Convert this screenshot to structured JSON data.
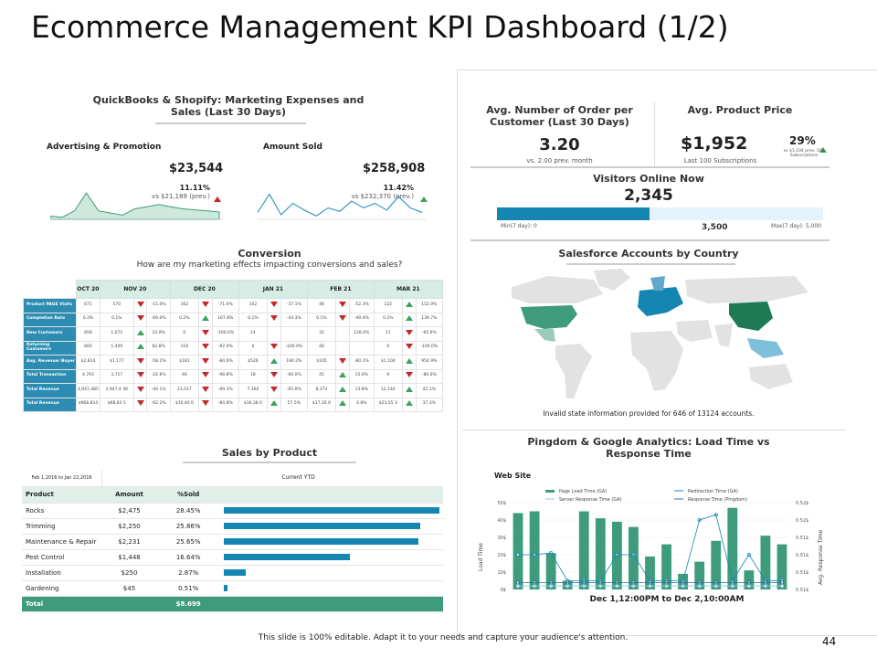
{
  "title": "Ecommerce Management KPI Dashboard (1/2)",
  "footer": {
    "note": "This slide is 100% editable. Adapt it to your needs and capture your audience's attention.",
    "page": "44"
  },
  "colors": {
    "teal": "#3e9c7c",
    "blue": "#1585b2",
    "red": "#c62828",
    "green": "#3aa35c"
  },
  "qb": {
    "title": "QuickBooks & Shopify: Marketing Expenses and Sales (Last 30 Days)",
    "adv": {
      "label": "Advertising & Promotion",
      "value": "$23,544",
      "pct": "11.11%",
      "vs": "vs $21,189 (prev.)"
    },
    "sold": {
      "label": "Amount Sold",
      "value": "$258,908",
      "pct": "11.42%",
      "vs": "vs $232,370 (prev.)"
    }
  },
  "conversion": {
    "title": "Conversion",
    "subtitle": "How are my marketing effects impacting conversions and sales?",
    "headers": [
      "OCT 20",
      "NOV 20",
      "DEC 20",
      "JAN 21",
      "FEB 21",
      "MAR 21"
    ],
    "rows": [
      {
        "name": "Product PAGE Visits",
        "oct": "671",
        "cells": [
          [
            "570",
            "d",
            "-15.0%"
          ],
          [
            "162",
            "d",
            "-71.6%"
          ],
          [
            "102",
            "d",
            "-37.1%"
          ],
          [
            "48",
            "d",
            "-52.3%"
          ],
          [
            "122",
            "u",
            "152.0%"
          ]
        ]
      },
      {
        "name": "Completion Rate",
        "oct": "0.3%",
        "cells": [
          [
            "0.1%",
            "d",
            "-69.0%"
          ],
          [
            "0.2%",
            "u",
            "167.8%"
          ],
          [
            "0.1%",
            "d",
            "-43.3%"
          ],
          [
            "0.1%",
            "d",
            "-49.4%"
          ],
          [
            "0.2%",
            "u",
            "139.7%"
          ]
        ]
      },
      {
        "name": "New Customers",
        "oct": "858",
        "cells": [
          [
            "1,072",
            "u",
            "24.9%"
          ],
          [
            "0",
            "d",
            "-100.0%"
          ],
          [
            "14",
            "",
            ""
          ],
          [
            "32",
            "",
            "128.6%"
          ],
          [
            "11",
            "d",
            "-65.6%"
          ]
        ]
      },
      {
        "name": "Returning Customers",
        "oct": "800",
        "cells": [
          [
            "1,449",
            "u",
            "82.8%"
          ],
          [
            "116",
            "d",
            "-92.0%"
          ],
          [
            "0",
            "d",
            "-100.0%"
          ],
          [
            "48",
            "",
            ""
          ],
          [
            "0",
            "d",
            "-100.0%"
          ]
        ]
      },
      {
        "name": "Avg. Revenue/ Buyer",
        "oct": "$2,814",
        "cells": [
          [
            "$1,177",
            "d",
            "-58.2%"
          ],
          [
            "$181",
            "d",
            "-84.6%"
          ],
          [
            "$526",
            "u",
            "190.2%"
          ],
          [
            "$105",
            "d",
            "-80.1%"
          ],
          [
            "$1,104",
            "u",
            "954.9%"
          ]
        ]
      },
      {
        "name": "Total Transaction",
        "oct": "4,793",
        "cells": [
          [
            "3,717",
            "d",
            "-22.6%"
          ],
          [
            "46",
            "d",
            "-98.8%"
          ],
          [
            "18",
            "d",
            "-60.0%"
          ],
          [
            "45",
            "u",
            "15.0%"
          ],
          [
            "9",
            "d",
            "-80.0%"
          ]
        ]
      },
      {
        "name": "Total Revenue",
        "oct": "4,947,485",
        "cells": [
          [
            "2,947,4 46",
            "d",
            "-40.1%"
          ],
          [
            "21,017",
            "d",
            "-99.3%"
          ],
          [
            "7,360",
            "d",
            "-65.0%"
          ],
          [
            "8,372",
            "u",
            "13.8%"
          ],
          [
            "12,144",
            "u",
            "45.1%"
          ]
        ]
      },
      {
        "name": "Total Revenue",
        "oct": "$968,814",
        "cells": [
          [
            "$68,83 5",
            "d",
            "-92.2%"
          ],
          [
            "$10,40 0",
            "d",
            "-84.8%"
          ],
          [
            "$16,38 0",
            "u",
            "57.5%"
          ],
          [
            "$17,16 0",
            "u",
            "4.8%"
          ],
          [
            "$23,55 3",
            "u",
            "37.3%"
          ]
        ]
      }
    ]
  },
  "sales": {
    "title": "Sales by Product",
    "period": "Feb 1,2016 to Jan 22,2016",
    "ytd": "Current YTD",
    "cols": [
      "Product",
      "Amount",
      "%Sold"
    ],
    "items": [
      {
        "product": "Rocks",
        "amount": "$2,475",
        "pct": "28.45%",
        "value": 28.45
      },
      {
        "product": "Trimming",
        "amount": "$2,250",
        "pct": "25.86%",
        "value": 25.86
      },
      {
        "product": "Maintenance & Repair",
        "amount": "$2,231",
        "pct": "25.65%",
        "value": 25.65
      },
      {
        "product": "Pest Control",
        "amount": "$1,448",
        "pct": "16.64%",
        "value": 16.64
      },
      {
        "product": "Installation",
        "amount": "$250",
        "pct": "2.87%",
        "value": 2.87
      },
      {
        "product": "Gardening",
        "amount": "$45",
        "pct": "0.51%",
        "value": 0.51
      }
    ],
    "total_label": "Total",
    "total": "$8.699"
  },
  "orders": {
    "title": "Avg. Number of Order per Customer (Last 30 Days)",
    "value": "3.20",
    "sub": "vs. 2.00 prev. month"
  },
  "price": {
    "title": "Avg. Product Price",
    "value": "$1,952",
    "sub": "Last 100 Subscriptions",
    "pct": "29%",
    "vs": "vs $1,104 prev. 100 Subscriptions"
  },
  "visitors": {
    "title": "Visitors Online Now",
    "value": "2,345",
    "min": "Min(7 day): 0",
    "max": "Max(7 day): 5,000",
    "mid": "3,500",
    "level": 0.469
  },
  "map": {
    "title": "Salesforce Accounts by Country",
    "note": "Invalid state information  provided for 646 of 13124 accounts."
  },
  "pingdom": {
    "title": "Pingdom & Google Analytics: Load Time vs Response Time",
    "site": "Web Site",
    "legend": [
      "Page Load Time (GA)",
      "Redirection Time (GA)",
      "Server Response Time (GA)",
      "Response Time (Pingdom)"
    ],
    "ylabel": "Load Time",
    "y2label": "Avg. Response Time",
    "xlabel": "Dec 1,12:00PM to Dec 2,10:00AM",
    "yticks": [
      "50$",
      "40$",
      "30$",
      "20$",
      "10$",
      "0$"
    ],
    "y2ticks": [
      "0.52$",
      "0.52$",
      "0.51$",
      "0.51$",
      "0.51$",
      "0.51$"
    ]
  },
  "chart_data": [
    {
      "type": "bar",
      "title": "Pingdom & Google Analytics: Load Time vs Response Time",
      "xlabel": "Dec 1,12:00PM to Dec 2,10:00AM",
      "ylabel": "Load Time",
      "ylim": [
        0,
        50
      ],
      "series": [
        {
          "name": "Page Load Time (GA)",
          "values": [
            44,
            45,
            21,
            5,
            45,
            41,
            39,
            36,
            19,
            26,
            9,
            16,
            28,
            47,
            11,
            31,
            26
          ]
        },
        {
          "name": "Response Time (Pingdom)",
          "values": [
            20,
            20,
            21,
            5,
            5,
            5,
            20,
            20,
            5,
            5,
            5,
            40,
            43,
            5,
            20,
            5,
            5
          ]
        },
        {
          "name": "Server Response Time (GA)",
          "values": [
            2,
            2,
            2,
            2,
            2,
            2,
            2,
            2,
            2,
            2,
            2,
            2,
            2,
            2,
            2,
            2,
            2
          ]
        },
        {
          "name": "Redirection Time (GA)",
          "values": [
            4,
            4,
            4,
            4,
            4,
            4,
            4,
            4,
            4,
            4,
            4,
            4,
            4,
            4,
            4,
            4,
            4
          ]
        }
      ]
    },
    {
      "type": "area",
      "title": "Advertising & Promotion",
      "values": [
        3,
        2,
        8,
        25,
        8,
        6,
        4,
        10,
        12,
        14,
        12,
        10,
        9,
        8,
        7
      ]
    },
    {
      "type": "line",
      "title": "Amount Sold",
      "values": [
        6,
        22,
        4,
        14,
        8,
        3,
        10,
        7,
        16,
        10,
        14,
        8,
        20,
        10,
        6
      ]
    }
  ]
}
